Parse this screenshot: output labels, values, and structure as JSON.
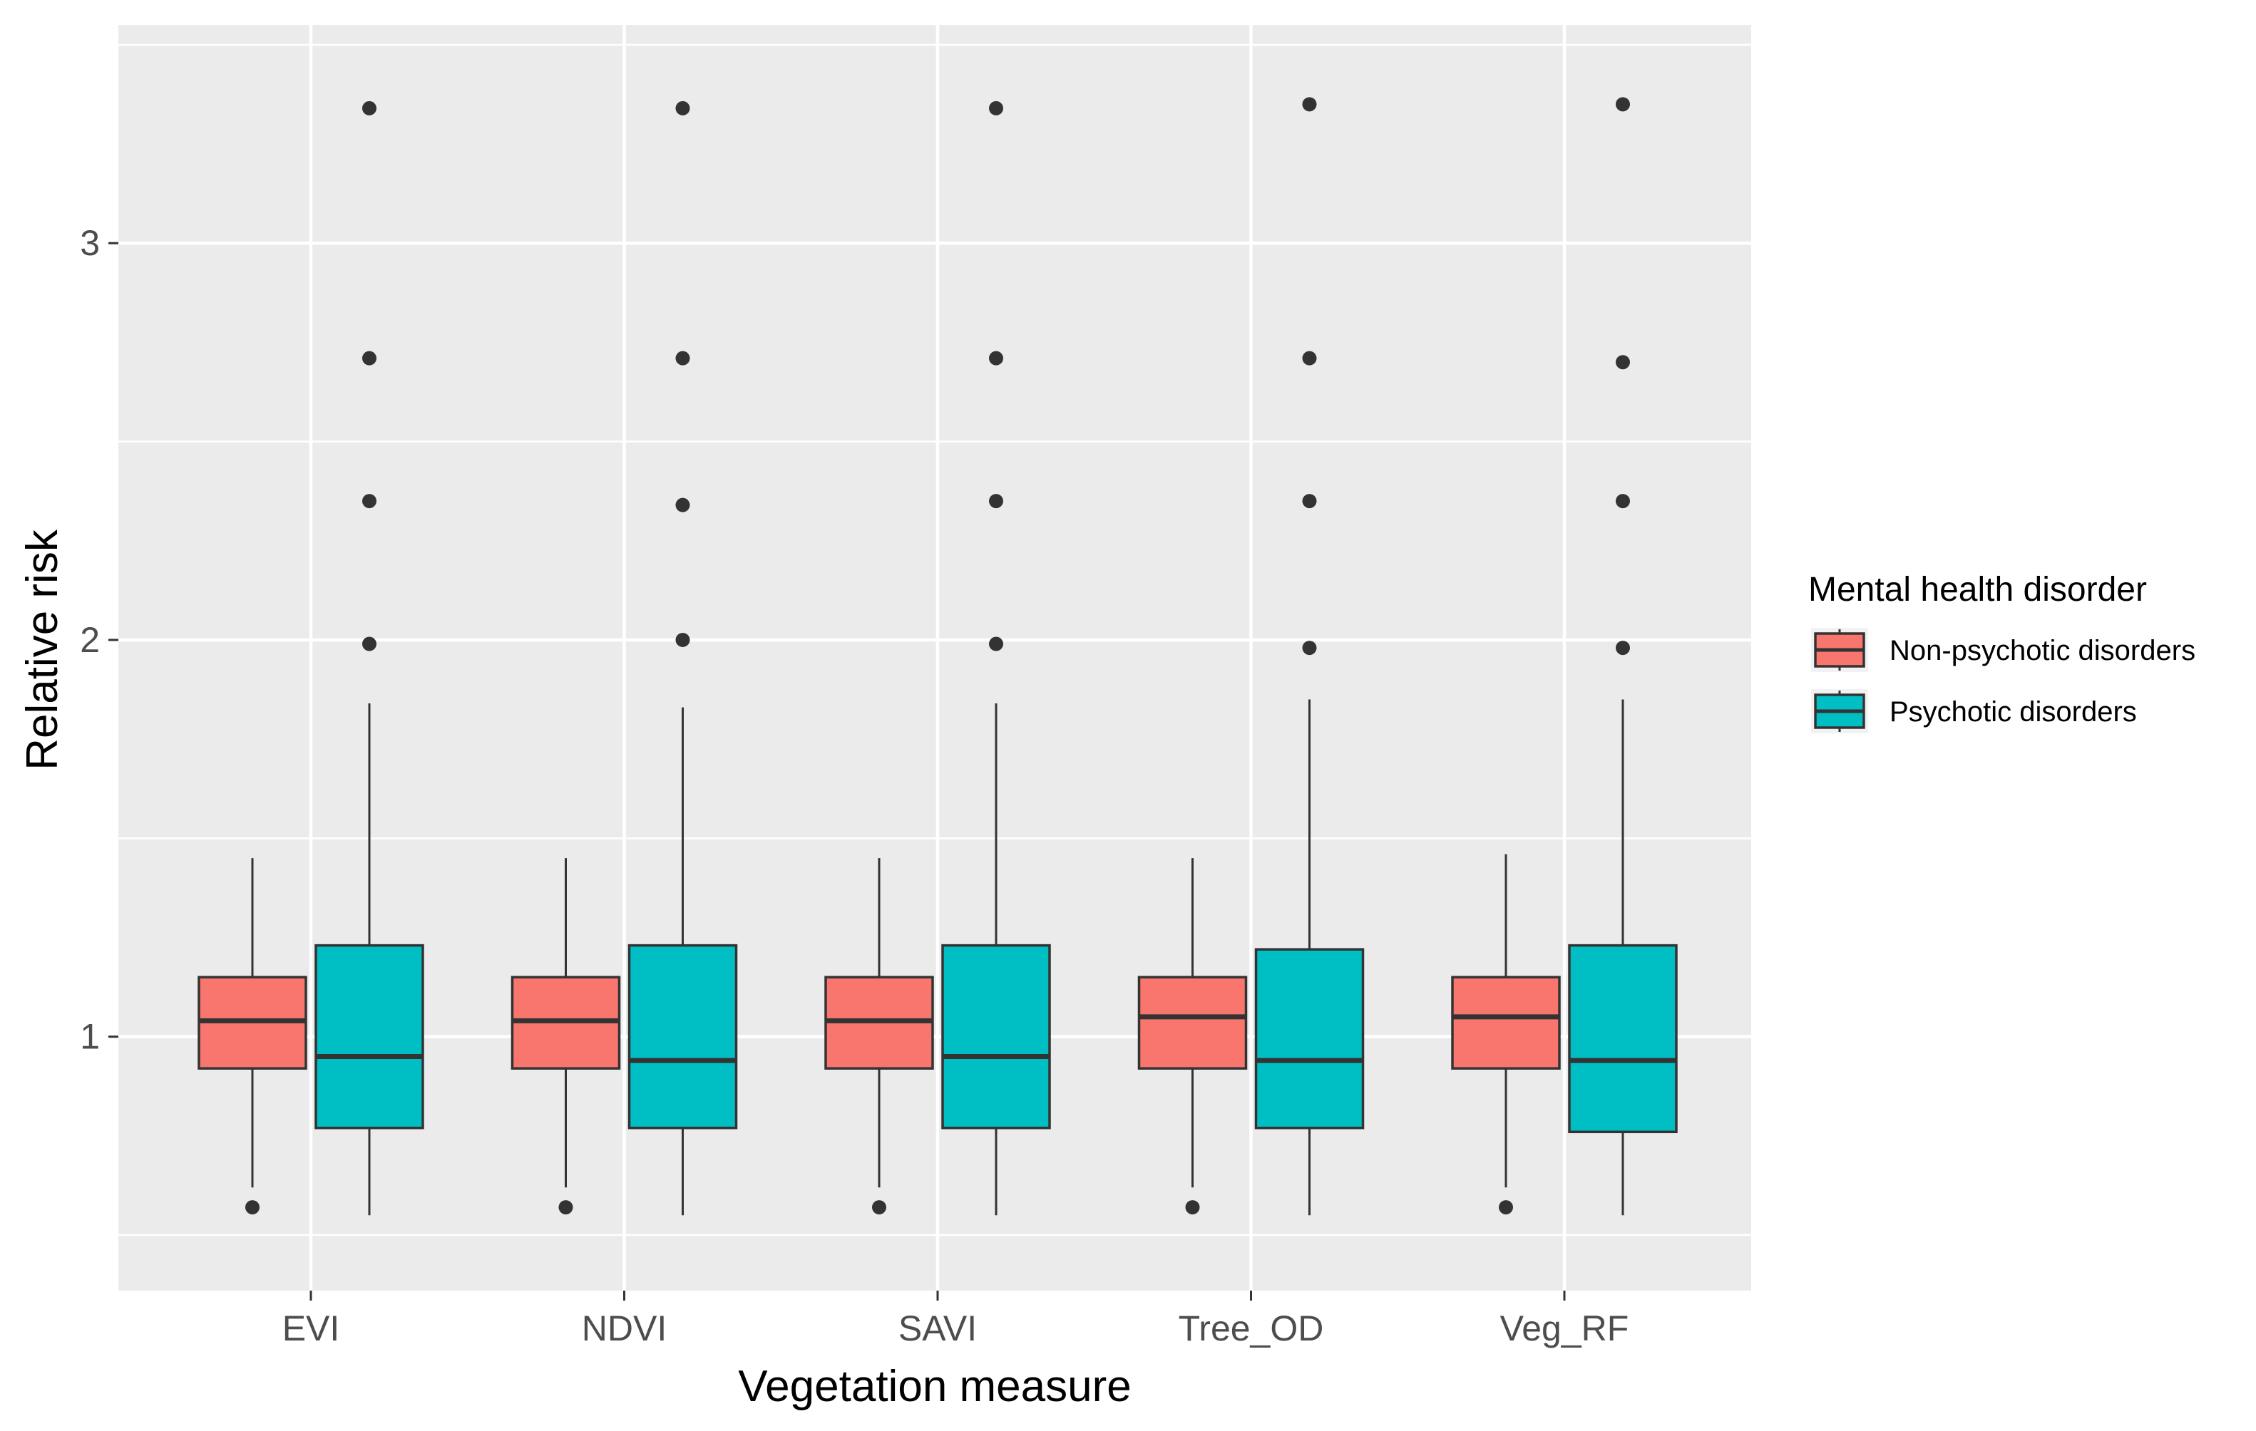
{
  "colors": {
    "panel_background": "#ebebeb",
    "grid_line": "#ffffff",
    "box_outline": "#333333",
    "outlier": "#333333",
    "tick_text": "#4d4d4d",
    "non_psychotic": "#f8766d",
    "psychotic": "#00bfc4"
  },
  "chart_data": {
    "type": "boxplot",
    "title": "",
    "xlabel": "Vegetation measure",
    "ylabel": "Relative risk",
    "ylim": [
      0.36,
      3.55
    ],
    "y_ticks": [
      1,
      2,
      3
    ],
    "y_minor_ticks": [
      0.5,
      1.5,
      2.5,
      3.5
    ],
    "categories": [
      "EVI",
      "NDVI",
      "SAVI",
      "Tree_OD",
      "Veg_RF"
    ],
    "legend": {
      "title": "Mental health disorder",
      "position": "right",
      "entries": [
        "Non-psychotic disorders",
        "Psychotic disorders"
      ]
    },
    "series": [
      {
        "name": "Non-psychotic disorders",
        "color": "#f8766d",
        "boxes": [
          {
            "lower_whisker": 0.62,
            "q1": 0.92,
            "median": 1.04,
            "q3": 1.15,
            "upper_whisker": 1.45,
            "outliers": [
              0.57
            ]
          },
          {
            "lower_whisker": 0.62,
            "q1": 0.92,
            "median": 1.04,
            "q3": 1.15,
            "upper_whisker": 1.45,
            "outliers": [
              0.57
            ]
          },
          {
            "lower_whisker": 0.62,
            "q1": 0.92,
            "median": 1.04,
            "q3": 1.15,
            "upper_whisker": 1.45,
            "outliers": [
              0.57
            ]
          },
          {
            "lower_whisker": 0.62,
            "q1": 0.92,
            "median": 1.05,
            "q3": 1.15,
            "upper_whisker": 1.45,
            "outliers": [
              0.57
            ]
          },
          {
            "lower_whisker": 0.62,
            "q1": 0.92,
            "median": 1.05,
            "q3": 1.15,
            "upper_whisker": 1.46,
            "outliers": [
              0.57
            ]
          }
        ]
      },
      {
        "name": "Psychotic disorders",
        "color": "#00bfc4",
        "boxes": [
          {
            "lower_whisker": 0.55,
            "q1": 0.77,
            "median": 0.95,
            "q3": 1.23,
            "upper_whisker": 1.84,
            "outliers": [
              1.99,
              2.35,
              2.71,
              3.34
            ]
          },
          {
            "lower_whisker": 0.55,
            "q1": 0.77,
            "median": 0.94,
            "q3": 1.23,
            "upper_whisker": 1.83,
            "outliers": [
              2.0,
              2.34,
              2.71,
              3.34
            ]
          },
          {
            "lower_whisker": 0.55,
            "q1": 0.77,
            "median": 0.95,
            "q3": 1.23,
            "upper_whisker": 1.84,
            "outliers": [
              1.99,
              2.35,
              2.71,
              3.34
            ]
          },
          {
            "lower_whisker": 0.55,
            "q1": 0.77,
            "median": 0.94,
            "q3": 1.22,
            "upper_whisker": 1.85,
            "outliers": [
              1.98,
              2.35,
              2.71,
              3.35
            ]
          },
          {
            "lower_whisker": 0.55,
            "q1": 0.76,
            "median": 0.94,
            "q3": 1.23,
            "upper_whisker": 1.85,
            "outliers": [
              1.98,
              2.35,
              2.7,
              3.35
            ]
          }
        ]
      }
    ]
  }
}
